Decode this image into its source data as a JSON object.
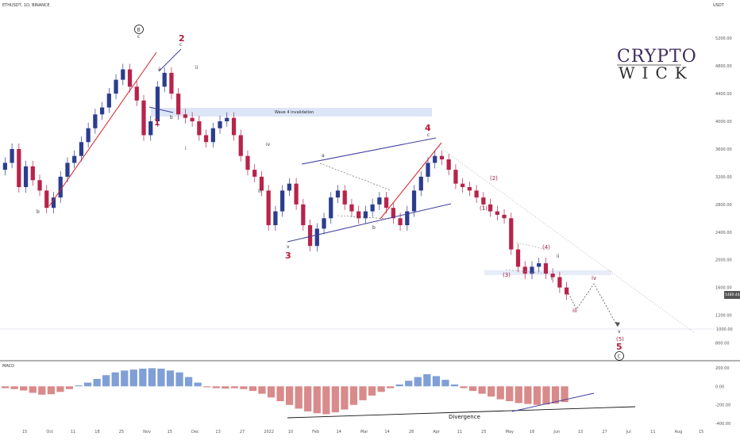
{
  "header": {
    "symbol": "ETHUSDT, 1D, BINANCE",
    "currency": "USDT"
  },
  "logo": {
    "line1": "CRYPTO",
    "line2": "WICK"
  },
  "chart_data": {
    "type": "candlestick",
    "price_axis": {
      "ticks": [
        "5200.00",
        "4800.00",
        "4400.00",
        "4000.00",
        "3600.00",
        "3200.00",
        "2800.00",
        "2400.00",
        "2000.00",
        "1600.00",
        "1200.00",
        "800.00"
      ],
      "ylim": [
        600,
        5500
      ]
    },
    "current_price": "1480.44",
    "time_axis": {
      "labels": [
        "15",
        "Oct",
        "11",
        "18",
        "25",
        "Nov",
        "15",
        "Dec",
        "13",
        "27",
        "2022",
        "10",
        "Feb",
        "14",
        "Mar",
        "14",
        "28",
        "Apr",
        "11",
        "25",
        "May",
        "16",
        "Jun",
        "13",
        "27",
        "Jul",
        "11",
        "Aug",
        "15"
      ]
    },
    "candles_close": [
      3400,
      3600,
      3050,
      3350,
      3150,
      3000,
      2750,
      2900,
      3200,
      3400,
      3500,
      3700,
      3900,
      4100,
      4200,
      4400,
      4600,
      4750,
      4500,
      4300,
      3800,
      4000,
      4500,
      4700,
      4400,
      4100,
      4050,
      4000,
      3800,
      3700,
      3900,
      4000,
      4050,
      3800,
      3500,
      3300,
      3200,
      3000,
      2500,
      2700,
      3000,
      3100,
      2800,
      2500,
      2200,
      2450,
      2600,
      2900,
      3000,
      2800,
      2700,
      2600,
      2700,
      2800,
      2900,
      2750,
      2600,
      2500,
      2700,
      3000,
      3200,
      3400,
      3500,
      3450,
      3300,
      3100,
      3050,
      3000,
      2900,
      2800,
      2700,
      2650,
      2600,
      2150,
      1900,
      1800,
      1900,
      1950,
      1800,
      1750,
      1600,
      1500
    ],
    "annotations": [
      {
        "text": "B",
        "style": "circled"
      },
      {
        "text": "2",
        "style": "red-bold"
      },
      {
        "text": "1",
        "style": "red-bold"
      },
      {
        "text": "3",
        "style": "red-bold"
      },
      {
        "text": "4",
        "style": "red-bold"
      },
      {
        "text": "5",
        "style": "red-bold"
      },
      {
        "text": "C",
        "style": "circled"
      },
      {
        "text": "(1)",
        "style": "red"
      },
      {
        "text": "(2)",
        "style": "red"
      },
      {
        "text": "(3)",
        "style": "red"
      },
      {
        "text": "(4)",
        "style": "red"
      },
      {
        "text": "(5)",
        "style": "red"
      },
      {
        "text": "a",
        "style": "small"
      },
      {
        "text": "b",
        "style": "small"
      },
      {
        "text": "c",
        "style": "small"
      },
      {
        "text": "i",
        "style": "small"
      },
      {
        "text": "ii",
        "style": "small"
      },
      {
        "text": "iii",
        "style": "small"
      },
      {
        "text": "iv",
        "style": "small"
      },
      {
        "text": "v",
        "style": "small"
      }
    ],
    "zone_label": "Wave 4 invalidation",
    "target_price": "1000.00",
    "indicator": {
      "name": "MACD",
      "ticks": [
        "200.00",
        "0.00",
        "-200.00",
        "-400.00"
      ],
      "divergence_label": "Divergence",
      "histogram": [
        -20,
        -30,
        -45,
        -70,
        -90,
        -85,
        -60,
        -30,
        10,
        40,
        80,
        120,
        150,
        170,
        180,
        190,
        195,
        190,
        170,
        150,
        100,
        40,
        -10,
        -20,
        -25,
        -20,
        -30,
        -50,
        -80,
        -120,
        -160,
        -200,
        -240,
        -270,
        -290,
        -300,
        -280,
        -250,
        -200,
        -150,
        -100,
        -60,
        -20,
        20,
        60,
        100,
        130,
        110,
        70,
        20,
        -20,
        -50,
        -80,
        -110,
        -140,
        -160,
        -180,
        -190,
        -200,
        -195,
        -185,
        -170
      ]
    }
  },
  "colors": {
    "up": "#2c3d8f",
    "down": "#b8234a",
    "red_line": "#d6202b",
    "blue_line": "#3f3f9e",
    "zone": "#dde6f6",
    "hist_pos": "#7f9fd6",
    "hist_neg": "#d98a8a"
  }
}
